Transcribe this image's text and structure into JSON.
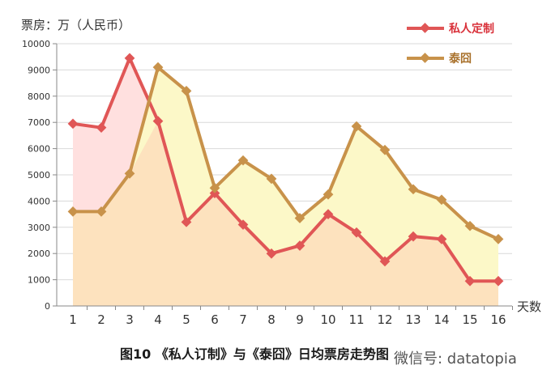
{
  "chart_data": {
    "type": "area",
    "ylabel": "票房：万（人民币）",
    "xlabel": "天数",
    "caption": "图10 《私人订制》与《泰囧》日均票房走势图",
    "watermark": "微信号: datatopia",
    "ylim": [
      0,
      10000
    ],
    "yticks": [
      0,
      1000,
      2000,
      3000,
      4000,
      5000,
      6000,
      7000,
      8000,
      9000,
      10000
    ],
    "x": [
      1,
      2,
      3,
      4,
      5,
      6,
      7,
      8,
      9,
      10,
      11,
      12,
      13,
      14,
      15,
      16
    ],
    "grid": true,
    "legend_position": "top-right",
    "series": [
      {
        "name": "私人定制",
        "color": "#e05656",
        "fill": "#ffe0df",
        "values": [
          6950,
          6800,
          9450,
          7050,
          3200,
          4300,
          3100,
          2000,
          2300,
          3500,
          2800,
          1700,
          2650,
          2550,
          950,
          950
        ]
      },
      {
        "name": "泰囧",
        "color": "#c8924a",
        "fill": "#fcf8c8",
        "values": [
          3600,
          3600,
          5050,
          9100,
          8200,
          4500,
          5550,
          4850,
          3350,
          4250,
          6850,
          5950,
          4450,
          4050,
          3050,
          2550
        ]
      }
    ],
    "overlap_fill": "#fde2be"
  }
}
